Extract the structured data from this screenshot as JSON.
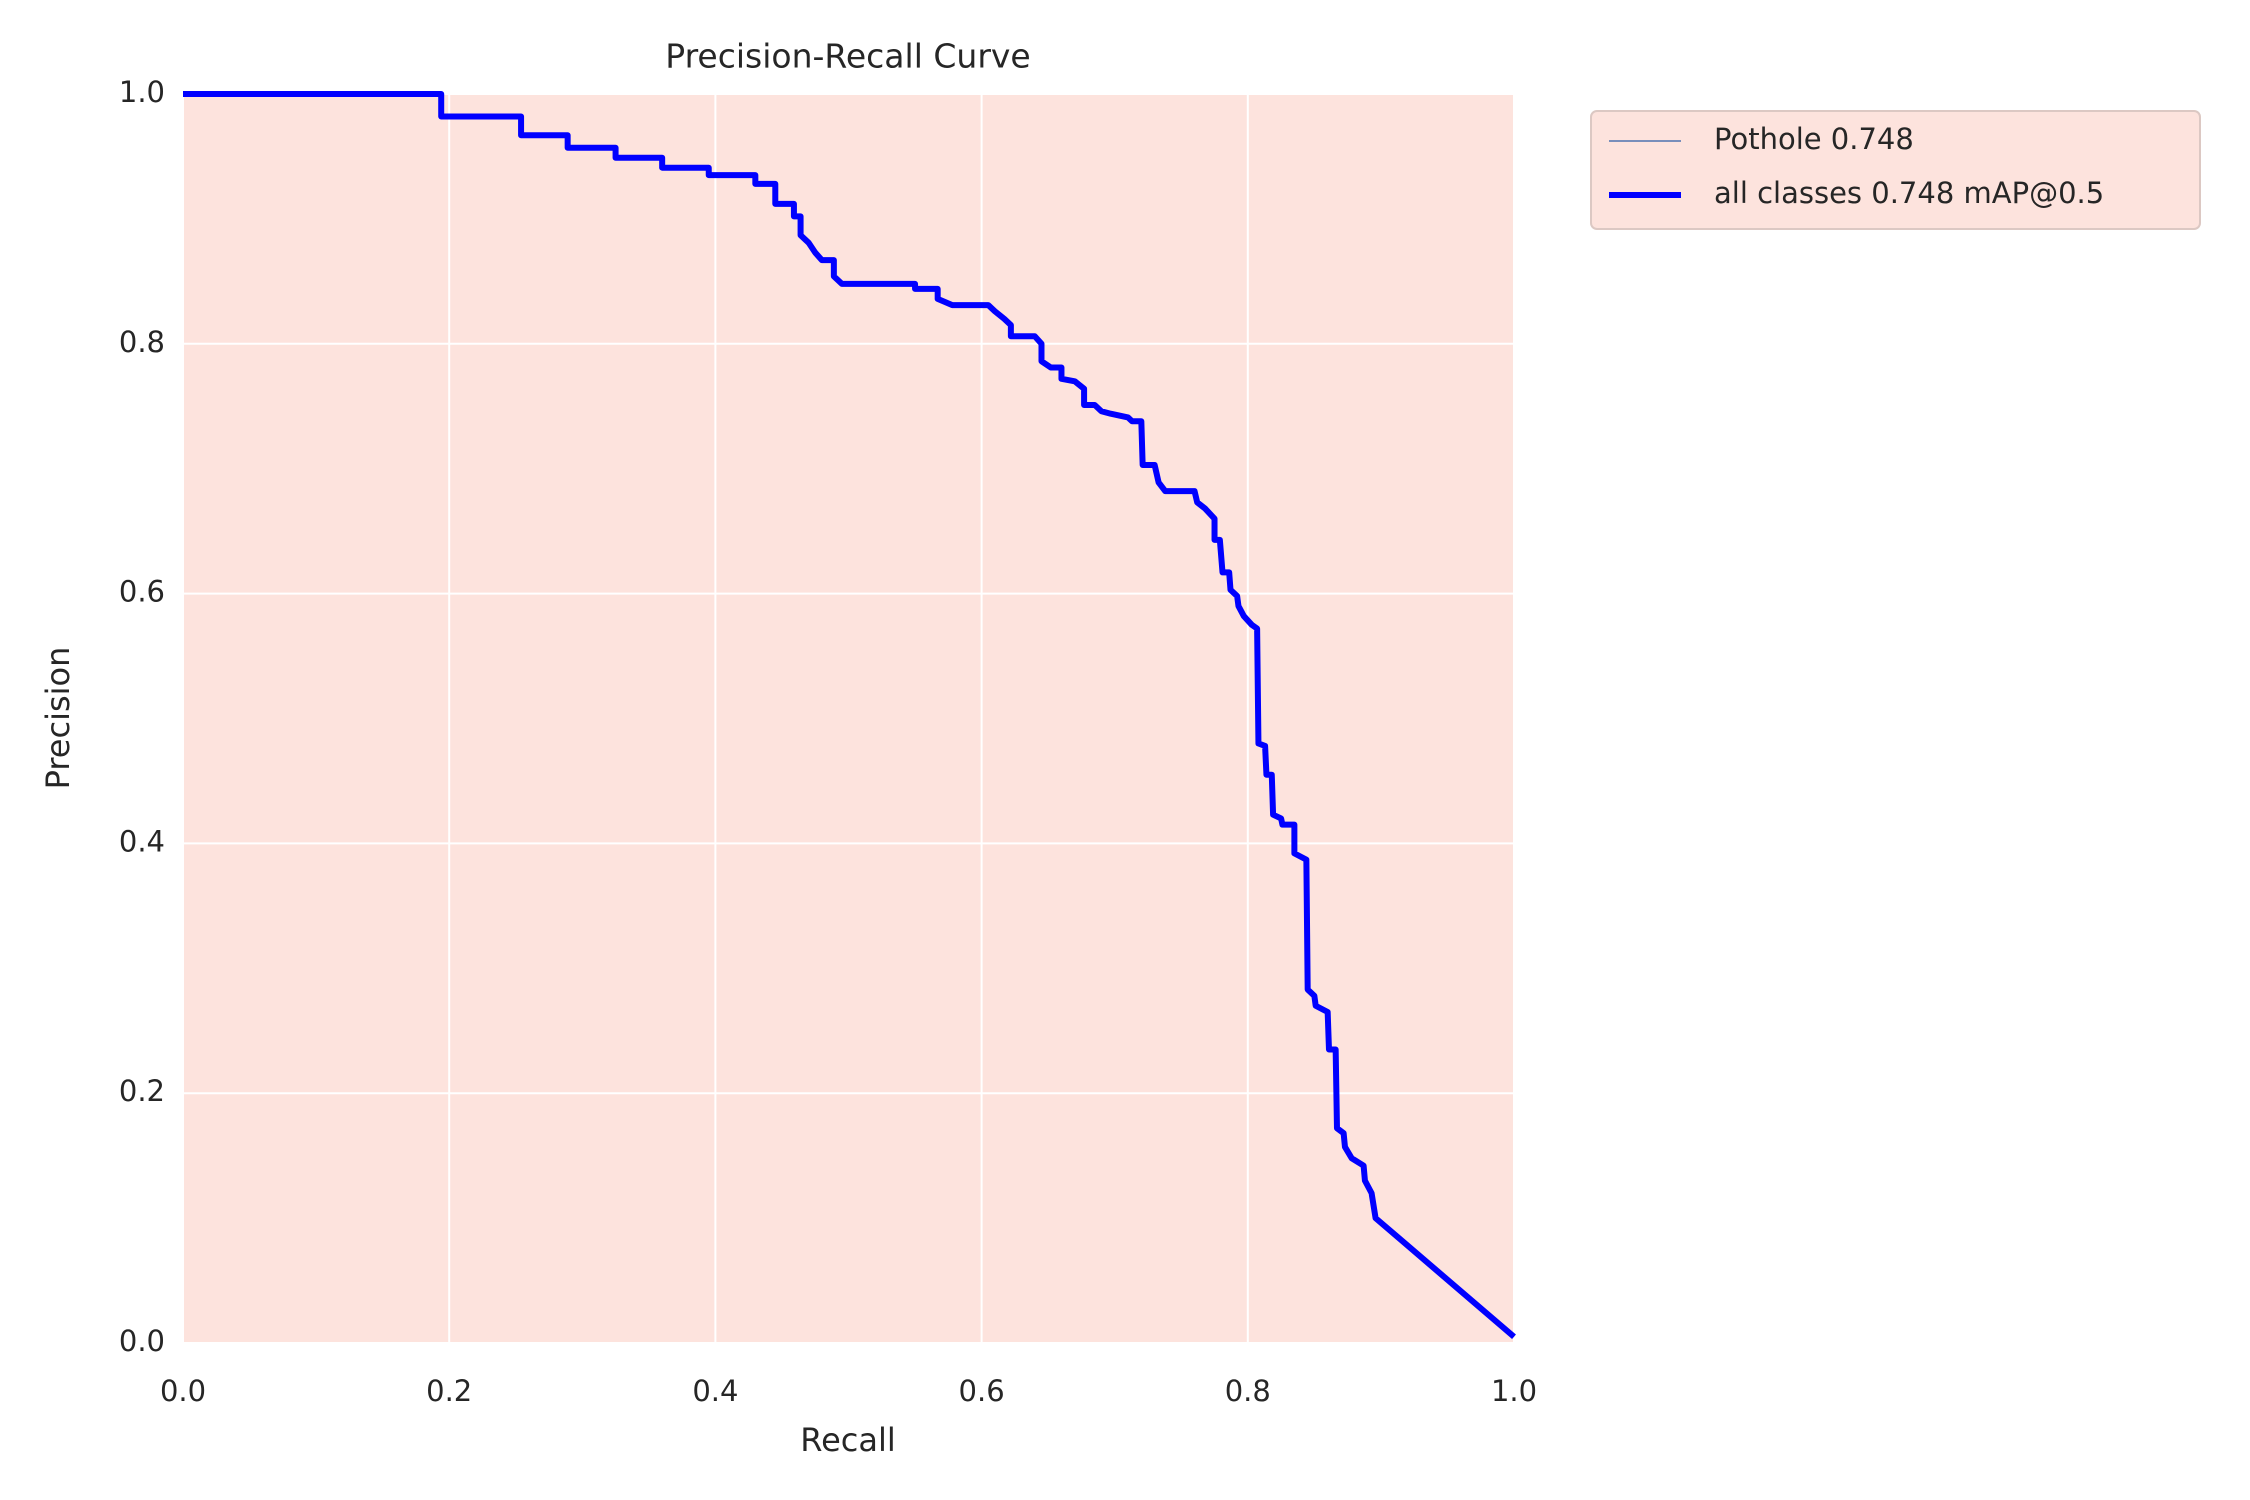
{
  "chart_data": {
    "type": "line",
    "title": "Precision-Recall Curve",
    "x_label": "Recall",
    "y_label": "Precision",
    "background": "#fde3dd",
    "grid": true,
    "legend": "outside-right",
    "xlim": [
      0,
      1
    ],
    "ylim": [
      0,
      1
    ],
    "xticks": [
      {
        "value": 0,
        "label": "0.0"
      },
      0.2,
      0.4,
      0.6,
      0.8,
      {
        "value": 1,
        "label": "1.0"
      }
    ],
    "yticks": [
      {
        "value": 0,
        "label": "0.0"
      },
      0.2,
      0.4,
      0.6,
      0.8,
      {
        "value": 1,
        "label": "1.0"
      }
    ],
    "x": [
      0,
      0.194,
      0.194,
      0.254,
      0.254,
      0.289,
      0.289,
      0.325,
      0.325,
      0.36,
      0.36,
      0.395,
      0.395,
      0.43,
      0.43,
      0.445,
      0.445,
      0.459,
      0.459,
      0.464,
      0.464,
      0.47,
      0.475,
      0.48,
      0.489,
      0.489,
      0.495,
      0.55,
      0.55,
      0.567,
      0.567,
      0.578,
      0.605,
      0.61,
      0.617,
      0.622,
      0.622,
      0.64,
      0.645,
      0.645,
      0.652,
      0.66,
      0.66,
      0.67,
      0.677,
      0.677,
      0.685,
      0.69,
      0.697,
      0.71,
      0.713,
      0.72,
      0.721,
      0.73,
      0.733,
      0.738,
      0.76,
      0.762,
      0.768,
      0.775,
      0.775,
      0.779,
      0.781,
      0.786,
      0.787,
      0.792,
      0.793,
      0.797,
      0.803,
      0.807,
      0.808,
      0.813,
      0.814,
      0.818,
      0.819,
      0.825,
      0.826,
      0.835,
      0.835,
      0.844,
      0.845,
      0.85,
      0.851,
      0.86,
      0.861,
      0.866,
      0.867,
      0.872,
      0.873,
      0.878,
      0.887,
      0.888,
      0.893,
      0.896,
      1.0
    ],
    "series": [
      {
        "name": "Pothole 0.748",
        "color": "#4c72b0",
        "width": 1.5,
        "values": [
          1,
          1,
          0.982,
          0.982,
          0.967,
          0.967,
          0.957,
          0.957,
          0.949,
          0.949,
          0.941,
          0.941,
          0.935,
          0.935,
          0.928,
          0.928,
          0.912,
          0.912,
          0.902,
          0.902,
          0.887,
          0.881,
          0.873,
          0.867,
          0.867,
          0.854,
          0.848,
          0.848,
          0.844,
          0.844,
          0.836,
          0.831,
          0.831,
          0.826,
          0.82,
          0.815,
          0.806,
          0.806,
          0.8,
          0.786,
          0.781,
          0.781,
          0.772,
          0.77,
          0.764,
          0.751,
          0.751,
          0.746,
          0.744,
          0.741,
          0.738,
          0.738,
          0.703,
          0.703,
          0.689,
          0.682,
          0.682,
          0.673,
          0.668,
          0.66,
          0.643,
          0.643,
          0.617,
          0.617,
          0.603,
          0.598,
          0.59,
          0.582,
          0.575,
          0.572,
          0.48,
          0.478,
          0.455,
          0.455,
          0.423,
          0.42,
          0.415,
          0.415,
          0.392,
          0.387,
          0.283,
          0.278,
          0.27,
          0.265,
          0.235,
          0.235,
          0.172,
          0.168,
          0.157,
          0.148,
          0.142,
          0.13,
          0.12,
          0.1,
          0.005
        ]
      },
      {
        "name": "all classes 0.748 mAP@0.5",
        "color": "#0000ff",
        "width": 6,
        "values": [
          1,
          1,
          0.982,
          0.982,
          0.967,
          0.967,
          0.957,
          0.957,
          0.949,
          0.949,
          0.941,
          0.941,
          0.935,
          0.935,
          0.928,
          0.928,
          0.912,
          0.912,
          0.902,
          0.902,
          0.887,
          0.881,
          0.873,
          0.867,
          0.867,
          0.854,
          0.848,
          0.848,
          0.844,
          0.844,
          0.836,
          0.831,
          0.831,
          0.826,
          0.82,
          0.815,
          0.806,
          0.806,
          0.8,
          0.786,
          0.781,
          0.781,
          0.772,
          0.77,
          0.764,
          0.751,
          0.751,
          0.746,
          0.744,
          0.741,
          0.738,
          0.738,
          0.703,
          0.703,
          0.689,
          0.682,
          0.682,
          0.673,
          0.668,
          0.66,
          0.643,
          0.643,
          0.617,
          0.617,
          0.603,
          0.598,
          0.59,
          0.582,
          0.575,
          0.572,
          0.48,
          0.478,
          0.455,
          0.455,
          0.423,
          0.42,
          0.415,
          0.415,
          0.392,
          0.387,
          0.283,
          0.278,
          0.27,
          0.265,
          0.235,
          0.235,
          0.172,
          0.168,
          0.157,
          0.148,
          0.142,
          0.13,
          0.12,
          0.1,
          0.005
        ]
      }
    ]
  }
}
